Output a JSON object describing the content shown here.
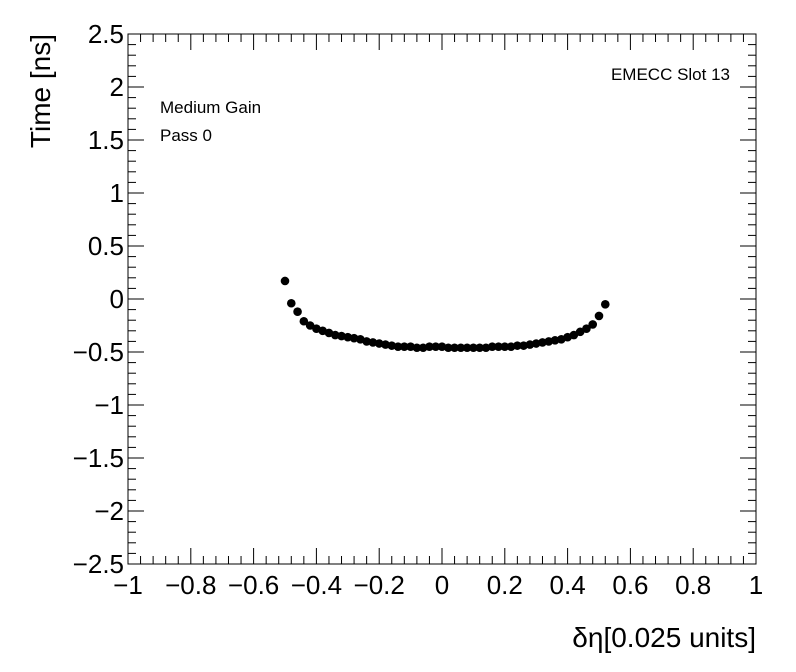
{
  "chart_data": {
    "type": "scatter",
    "xlabel": "δη[0.025 units]",
    "ylabel": "Time [ns]",
    "xlim": [
      -1,
      1
    ],
    "ylim": [
      -2.5,
      2.5
    ],
    "x_ticks": [
      "−1",
      "−0.8",
      "−0.6",
      "−0.4",
      "−0.2",
      "0",
      "0.2",
      "0.4",
      "0.6",
      "0.8",
      "1"
    ],
    "y_ticks": [
      "−2.5",
      "−2",
      "−1.5",
      "−1",
      "−0.5",
      "0",
      "0.5",
      "1",
      "1.5",
      "2",
      "2.5"
    ],
    "annotations": {
      "top_right": "EMECC Slot 13",
      "line1": "Medium Gain",
      "line2": "Pass 0"
    },
    "grid": false,
    "marker_color": "#000000",
    "series": [
      {
        "x": [
          -0.5,
          -0.48,
          -0.46,
          -0.44,
          -0.42,
          -0.4,
          -0.38,
          -0.36,
          -0.34,
          -0.32,
          -0.3,
          -0.28,
          -0.26,
          -0.24,
          -0.22,
          -0.2,
          -0.18,
          -0.16,
          -0.14,
          -0.12,
          -0.1,
          -0.08,
          -0.06,
          -0.04,
          -0.02,
          0.0,
          0.02,
          0.04,
          0.06,
          0.08,
          0.1,
          0.12,
          0.14,
          0.16,
          0.18,
          0.2,
          0.22,
          0.24,
          0.26,
          0.28,
          0.3,
          0.32,
          0.34,
          0.36,
          0.38,
          0.4,
          0.42,
          0.44,
          0.46,
          0.48,
          0.5,
          0.52
        ],
        "y": [
          0.17,
          -0.04,
          -0.12,
          -0.21,
          -0.25,
          -0.28,
          -0.3,
          -0.32,
          -0.34,
          -0.35,
          -0.36,
          -0.37,
          -0.38,
          -0.4,
          -0.41,
          -0.42,
          -0.43,
          -0.44,
          -0.45,
          -0.45,
          -0.45,
          -0.46,
          -0.46,
          -0.45,
          -0.45,
          -0.45,
          -0.46,
          -0.46,
          -0.46,
          -0.46,
          -0.46,
          -0.46,
          -0.46,
          -0.45,
          -0.45,
          -0.45,
          -0.45,
          -0.44,
          -0.44,
          -0.43,
          -0.42,
          -0.41,
          -0.4,
          -0.39,
          -0.38,
          -0.36,
          -0.34,
          -0.31,
          -0.28,
          -0.24,
          -0.16,
          -0.05
        ]
      }
    ]
  }
}
